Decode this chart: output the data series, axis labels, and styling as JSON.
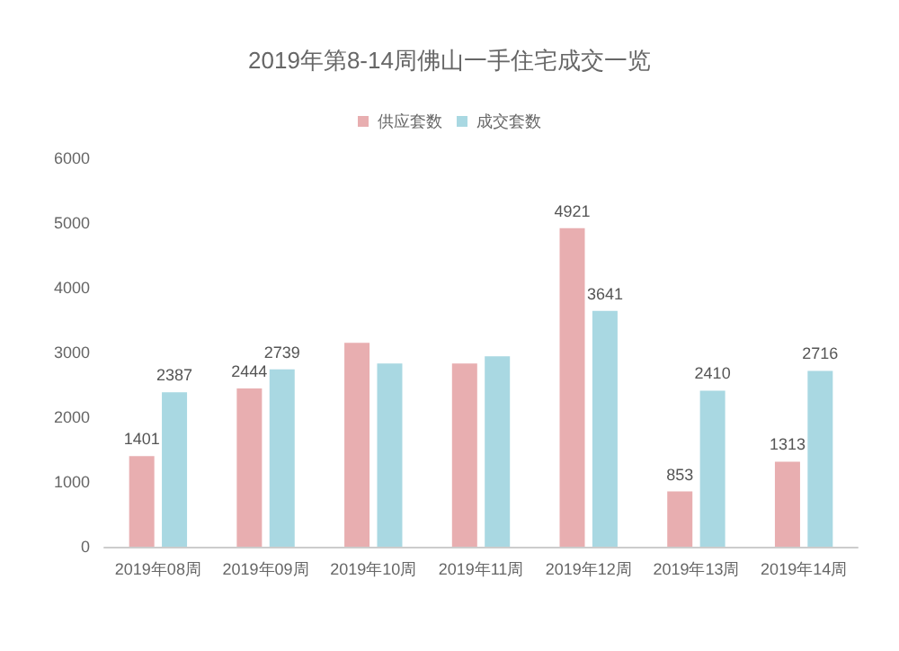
{
  "chart_data": {
    "type": "bar",
    "title": "2019年第8-14周佛山一手住宅成交一览",
    "categories": [
      "2019年08周",
      "2019年09周",
      "2019年10周",
      "2019年11周",
      "2019年12周",
      "2019年13周",
      "2019年14周"
    ],
    "series": [
      {
        "name": "供应套数",
        "color": "#e8aeb0",
        "values": [
          1401,
          2444,
          3150,
          2830,
          4921,
          853,
          1313
        ],
        "value_labels": [
          "1401",
          "2444",
          null,
          null,
          "4921",
          "853",
          "1313"
        ]
      },
      {
        "name": "成交套数",
        "color": "#a9d8e2",
        "values": [
          2387,
          2739,
          2830,
          2940,
          3641,
          2410,
          2716
        ],
        "value_labels": [
          "2387",
          "2739",
          null,
          null,
          "3641",
          "2410",
          "2716"
        ]
      }
    ],
    "ylim": [
      0,
      6000
    ],
    "yticks": [
      0,
      1000,
      2000,
      3000,
      4000,
      5000,
      6000
    ],
    "grid": false,
    "legend": "top"
  }
}
